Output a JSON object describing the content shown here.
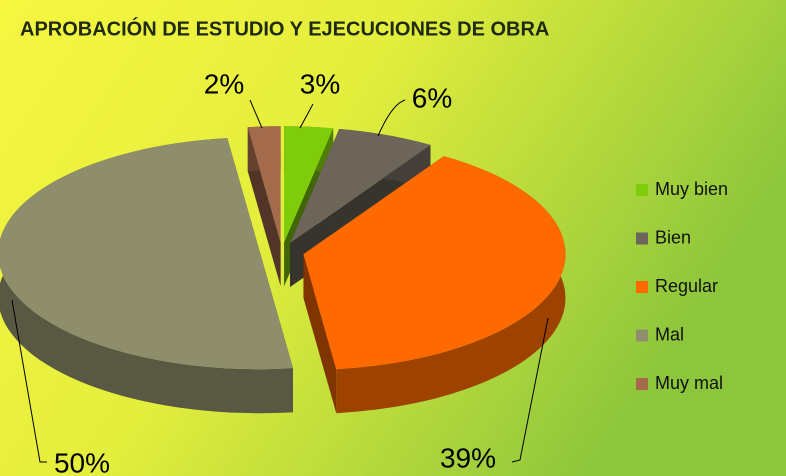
{
  "chart_data": {
    "type": "pie3d",
    "title": "APROBACIÓN DE ESTUDIO Y EJECUCIONES DE OBRA",
    "categories": [
      "Muy bien",
      "Bien",
      "Regular",
      "Mal",
      "Muy mal"
    ],
    "values": [
      3,
      6,
      39,
      50,
      2
    ],
    "value_labels": [
      "3%",
      "6%",
      "39%",
      "50%",
      "2%"
    ],
    "colors": [
      "#7fcc0a",
      "#6e655a",
      "#ff6a00",
      "#8e8e6c",
      "#a36a4c"
    ],
    "legend": "right"
  }
}
